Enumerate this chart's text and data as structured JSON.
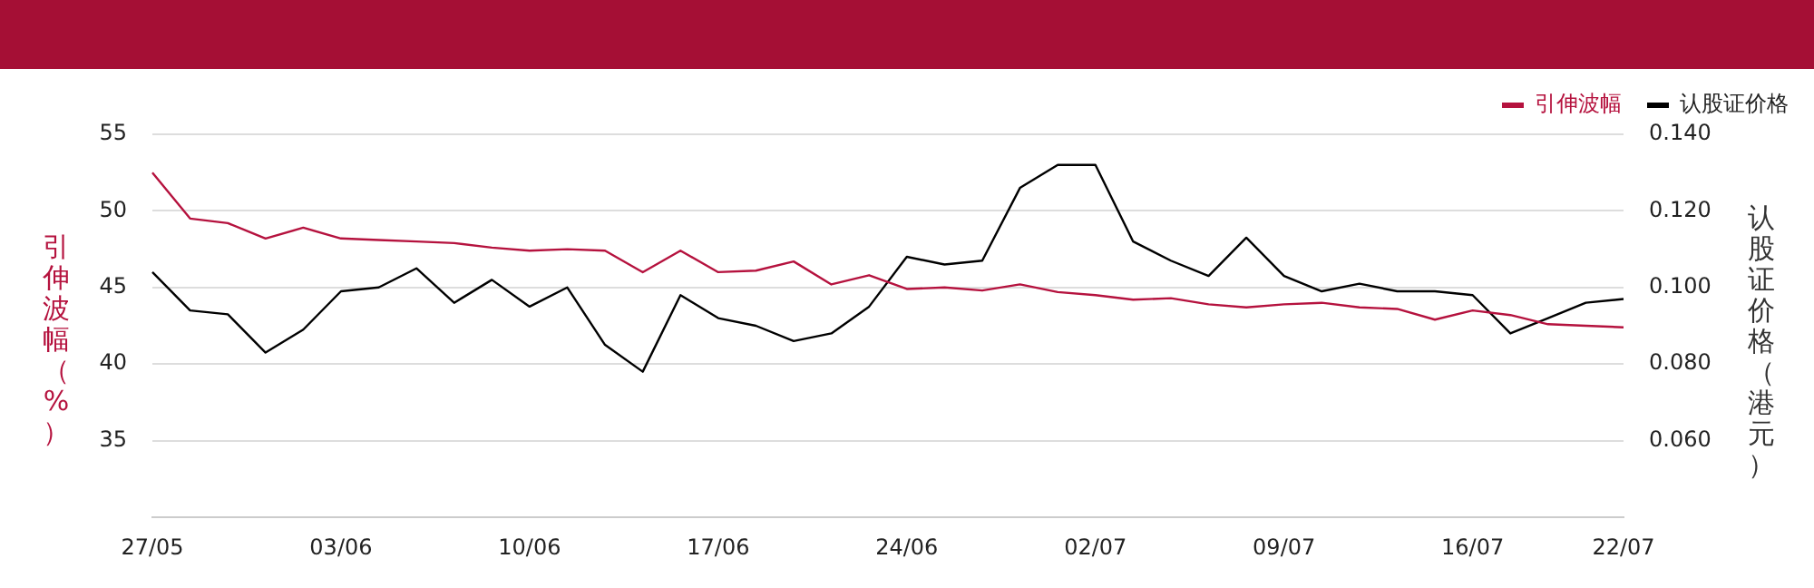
{
  "chart_data": {
    "type": "line",
    "categories": [
      "27/05",
      null,
      null,
      null,
      null,
      "03/06",
      null,
      null,
      null,
      null,
      "10/06",
      null,
      null,
      null,
      null,
      "17/06",
      null,
      null,
      null,
      null,
      "24/06",
      null,
      null,
      null,
      null,
      "02/07",
      null,
      null,
      null,
      null,
      "09/07",
      null,
      null,
      null,
      null,
      "16/07",
      null,
      null,
      null,
      "22/07"
    ],
    "ylabel": "引伸波幅（%）",
    "y2label": "认股证价格（港元）",
    "ylim": [
      30,
      55
    ],
    "yticks": [
      35,
      40,
      45,
      50,
      55
    ],
    "y2lim": [
      0.04,
      0.14
    ],
    "y2ticks": [
      {
        "value": 0.06,
        "label": "0.060"
      },
      {
        "value": 0.08,
        "label": "0.080"
      },
      {
        "value": 0.1,
        "label": "0.100"
      },
      {
        "value": 0.12,
        "label": "0.120"
      },
      {
        "value": 0.14,
        "label": "0.140"
      }
    ],
    "grid": "y",
    "legend": "top right",
    "marker": "none",
    "line_style": "solid",
    "series": [
      {
        "name": "引伸波幅",
        "color": "#b5123e",
        "values": [
          52.5,
          49.5,
          49.2,
          48.2,
          48.9,
          48.2,
          48.1,
          48.0,
          47.9,
          47.6,
          47.4,
          47.5,
          47.4,
          46.0,
          47.4,
          46.0,
          46.1,
          46.7,
          45.2,
          45.8,
          44.9,
          45.0,
          44.8,
          45.2,
          44.7,
          44.5,
          44.2,
          44.3,
          43.9,
          43.7,
          43.9,
          44.0,
          43.7,
          43.6,
          42.9,
          43.5,
          43.2,
          42.6,
          42.5,
          42.4
        ]
      },
      {
        "name": "认股证价格",
        "color": "#000000",
        "axis": "y2",
        "values": [
          0.104,
          0.094,
          0.093,
          0.083,
          0.089,
          0.099,
          0.1,
          0.105,
          0.096,
          0.102,
          0.095,
          0.1,
          0.085,
          0.078,
          0.098,
          0.092,
          0.09,
          0.086,
          0.088,
          0.095,
          0.108,
          0.106,
          0.107,
          0.126,
          0.132,
          0.132,
          0.112,
          0.107,
          0.103,
          0.113,
          0.103,
          0.099,
          0.101,
          0.099,
          0.099,
          0.098,
          0.088,
          0.092,
          0.096,
          0.097
        ]
      }
    ]
  }
}
